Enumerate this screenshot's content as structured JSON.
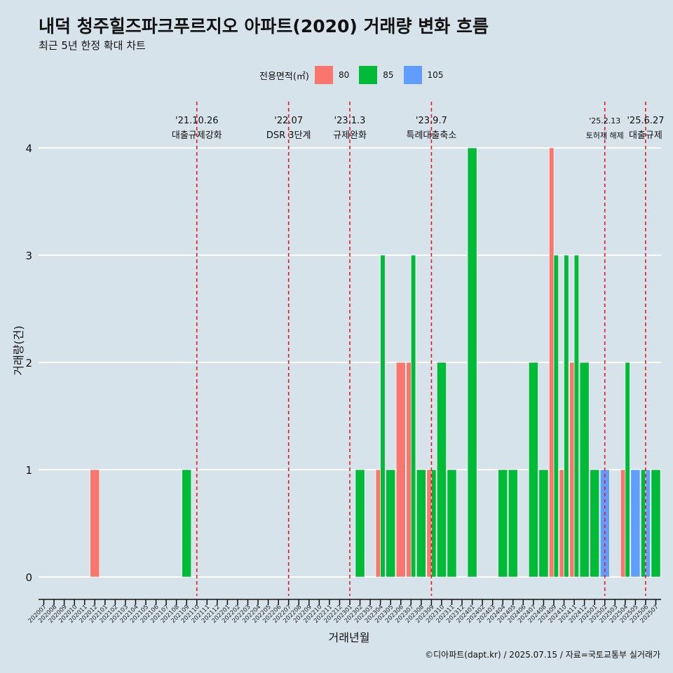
{
  "title": "내덕 청주힐즈파크푸르지오 아파트(2020) 거래량 변화 흐름",
  "subtitle": "최근 5년 한정 확대 차트",
  "caption": "©디아파트(dapt.kr) / 2025.07.15 / 자료=국토교통부 실거래가",
  "legend": {
    "title": "전용면적(㎡)",
    "items": [
      {
        "label": "80",
        "color": "#f8766d"
      },
      {
        "label": "85",
        "color": "#00ba38"
      },
      {
        "label": "105",
        "color": "#619cff"
      }
    ]
  },
  "chart_data": {
    "type": "bar",
    "xlabel": "거래년월",
    "ylabel": "거래량(건)",
    "ylim": [
      0,
      4
    ],
    "yticks": [
      0,
      1,
      2,
      3,
      4
    ],
    "grid": true,
    "legend_position": "top",
    "categories": [
      "202007",
      "202008",
      "202009",
      "202010",
      "202011",
      "202012",
      "202101",
      "202102",
      "202103",
      "202104",
      "202105",
      "202106",
      "202107",
      "202108",
      "202109",
      "202110",
      "202111",
      "202112",
      "202201",
      "202202",
      "202203",
      "202204",
      "202205",
      "202206",
      "202207",
      "202208",
      "202209",
      "202210",
      "202211",
      "202212",
      "202301",
      "202302",
      "202303",
      "202304",
      "202305",
      "202306",
      "202307",
      "202308",
      "202309",
      "202310",
      "202311",
      "202312",
      "202401",
      "202402",
      "202403",
      "202404",
      "202405",
      "202406",
      "202407",
      "202408",
      "202409",
      "202410",
      "202411",
      "202412",
      "202501",
      "202502",
      "202503",
      "202504",
      "202505",
      "202506",
      "202507"
    ],
    "series": [
      {
        "name": "80",
        "color": "#f8766d",
        "values": [
          0,
          0,
          0,
          0,
          0,
          1,
          0,
          0,
          0,
          0,
          0,
          0,
          0,
          0,
          0,
          0,
          0,
          0,
          0,
          0,
          0,
          0,
          0,
          0,
          0,
          0,
          0,
          0,
          0,
          0,
          0,
          0,
          0,
          1,
          0,
          2,
          2,
          0,
          1,
          0,
          0,
          0,
          0,
          0,
          0,
          0,
          0,
          0,
          0,
          0,
          4,
          1,
          2,
          0,
          0,
          0,
          0,
          1,
          0,
          0,
          0
        ]
      },
      {
        "name": "85",
        "color": "#00ba38",
        "values": [
          0,
          0,
          0,
          0,
          0,
          0,
          0,
          0,
          0,
          0,
          0,
          0,
          0,
          0,
          1,
          0,
          0,
          0,
          0,
          0,
          0,
          0,
          0,
          0,
          0,
          0,
          0,
          0,
          0,
          0,
          0,
          1,
          0,
          3,
          1,
          0,
          3,
          1,
          1,
          2,
          1,
          0,
          4,
          0,
          0,
          1,
          1,
          0,
          2,
          1,
          3,
          3,
          3,
          2,
          1,
          0,
          0,
          2,
          0,
          1,
          1
        ]
      },
      {
        "name": "105",
        "color": "#619cff",
        "values": [
          0,
          0,
          0,
          0,
          0,
          0,
          0,
          0,
          0,
          0,
          0,
          0,
          0,
          0,
          0,
          0,
          0,
          0,
          0,
          0,
          0,
          0,
          0,
          0,
          0,
          0,
          0,
          0,
          0,
          0,
          0,
          0,
          0,
          0,
          0,
          0,
          0,
          0,
          0,
          0,
          0,
          0,
          0,
          0,
          0,
          0,
          0,
          0,
          0,
          0,
          0,
          0,
          0,
          0,
          0,
          1,
          0,
          0,
          1,
          1,
          0
        ]
      }
    ],
    "annotations": [
      {
        "month": "202110",
        "date": "'21.10.26",
        "label": "대출규제강화"
      },
      {
        "month": "202207",
        "date": "'22.07",
        "label": "DSR 3단계"
      },
      {
        "month": "202301",
        "date": "'23.1.3",
        "label": "규제완화"
      },
      {
        "month": "202309",
        "date": "'23.9.7",
        "label": "특례대출축소"
      },
      {
        "month": "202502",
        "date": "'25.2.13",
        "label": "토허제 해제",
        "small": true
      },
      {
        "month": "202506",
        "date": "'25.6.27",
        "label": "대출규제"
      }
    ]
  }
}
